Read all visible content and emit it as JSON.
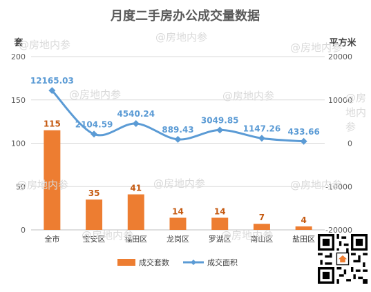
{
  "watermarks": [
    "@房地内参",
    "@房地内参",
    "@房地内参",
    "@房地内参",
    "@房地内参",
    "@房地内参",
    "@房地内参",
    "@房地内参",
    "@房地内参",
    "@房地内参",
    "@房地内参"
  ],
  "chart_data": {
    "type": "bar",
    "title": "月度二手房办公成交量数据",
    "ylabel": "套",
    "y2label": "平方米",
    "categories": [
      "全市",
      "宝安区",
      "福田区",
      "龙岗区",
      "罗湖区",
      "南山区",
      "盐田区"
    ],
    "series": [
      {
        "name": "成交套数",
        "type": "bar",
        "axis": "left",
        "color": "#ed7d31",
        "values": [
          115,
          35,
          41,
          14,
          14,
          7,
          4
        ]
      },
      {
        "name": "成交面积",
        "type": "line",
        "axis": "right",
        "color": "#5b9bd5",
        "values": [
          12165.03,
          2104.59,
          4540.24,
          889.43,
          3049.85,
          1147.26,
          433.66
        ]
      }
    ],
    "ylim": [
      0,
      200
    ],
    "yticks": [
      0,
      50,
      100,
      150,
      200
    ],
    "y2lim": [
      -20000,
      20000
    ],
    "y2ticks": [
      -20000,
      -10000,
      0,
      10000,
      20000
    ],
    "bar_label_color": "#c55a11",
    "line_label_color": "#5b9bd5",
    "grid": true,
    "legend": "bottom"
  }
}
